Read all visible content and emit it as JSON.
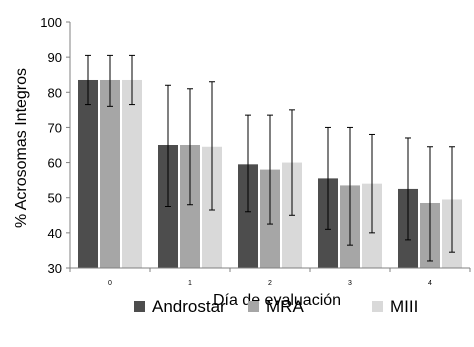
{
  "chart_data": {
    "type": "bar",
    "title": "",
    "xlabel": "Día de evaluación",
    "ylabel": "% Acrosomas Integros",
    "categories": [
      "0",
      "1",
      "2",
      "3",
      "4"
    ],
    "ylim": [
      30,
      100
    ],
    "yticks": [
      30,
      40,
      50,
      60,
      70,
      80,
      90,
      100
    ],
    "grid": false,
    "legend": "bottom",
    "error_bars": true,
    "series": [
      {
        "name": "Androstar",
        "color": "#4d4d4d",
        "values": [
          83.5,
          65.0,
          59.5,
          55.5,
          52.5
        ],
        "err_low": [
          76.5,
          47.5,
          46.0,
          41.0,
          38.0
        ],
        "err_high": [
          90.5,
          82.0,
          73.5,
          70.0,
          67.0
        ]
      },
      {
        "name": "MRA",
        "color": "#a6a6a6",
        "values": [
          83.5,
          65.0,
          58.0,
          53.5,
          48.5
        ],
        "err_low": [
          76.0,
          48.0,
          42.5,
          36.5,
          32.0
        ],
        "err_high": [
          90.5,
          81.0,
          73.5,
          70.0,
          64.5
        ]
      },
      {
        "name": "MIII",
        "color": "#d9d9d9",
        "values": [
          83.5,
          64.5,
          60.0,
          54.0,
          49.5
        ],
        "err_low": [
          76.5,
          46.5,
          45.0,
          40.0,
          34.5
        ],
        "err_high": [
          90.5,
          83.0,
          75.0,
          68.0,
          64.5
        ]
      }
    ]
  }
}
